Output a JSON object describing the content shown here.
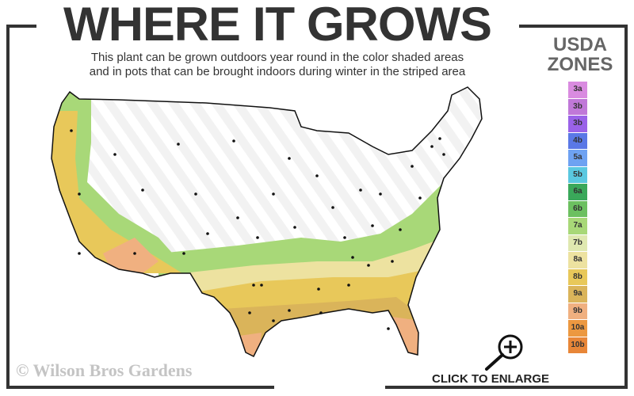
{
  "title": "WHERE IT GROWS",
  "subtitle_line1": "This plant can be grown outdoors year round in the color shaded areas",
  "subtitle_line2": "and in pots that can be brought indoors during winter in the striped area",
  "legend": {
    "title_line1": "USDA",
    "title_line2": "ZONES",
    "zones": [
      {
        "label": "3a",
        "color": "#d98be0"
      },
      {
        "label": "3b",
        "color": "#c078d8"
      },
      {
        "label": "3b",
        "color": "#9a62e8"
      },
      {
        "label": "4b",
        "color": "#5a78e6"
      },
      {
        "label": "5a",
        "color": "#6ea2f2"
      },
      {
        "label": "5b",
        "color": "#5ac8e0"
      },
      {
        "label": "6a",
        "color": "#3aa85a"
      },
      {
        "label": "6b",
        "color": "#6cc060"
      },
      {
        "label": "7a",
        "color": "#a8d878"
      },
      {
        "label": "7b",
        "color": "#dfe8b0"
      },
      {
        "label": "8a",
        "color": "#ede2a0"
      },
      {
        "label": "8b",
        "color": "#e8c85a"
      },
      {
        "label": "9a",
        "color": "#dab45a"
      },
      {
        "label": "9b",
        "color": "#f0b080"
      },
      {
        "label": "10a",
        "color": "#ec9840"
      },
      {
        "label": "10b",
        "color": "#e88638"
      }
    ]
  },
  "copyright": "© Wilson Bros Gardens",
  "enlarge_label": "CLICK TO ENLARGE",
  "icons": {
    "enlarge": "magnifier-plus-icon"
  }
}
